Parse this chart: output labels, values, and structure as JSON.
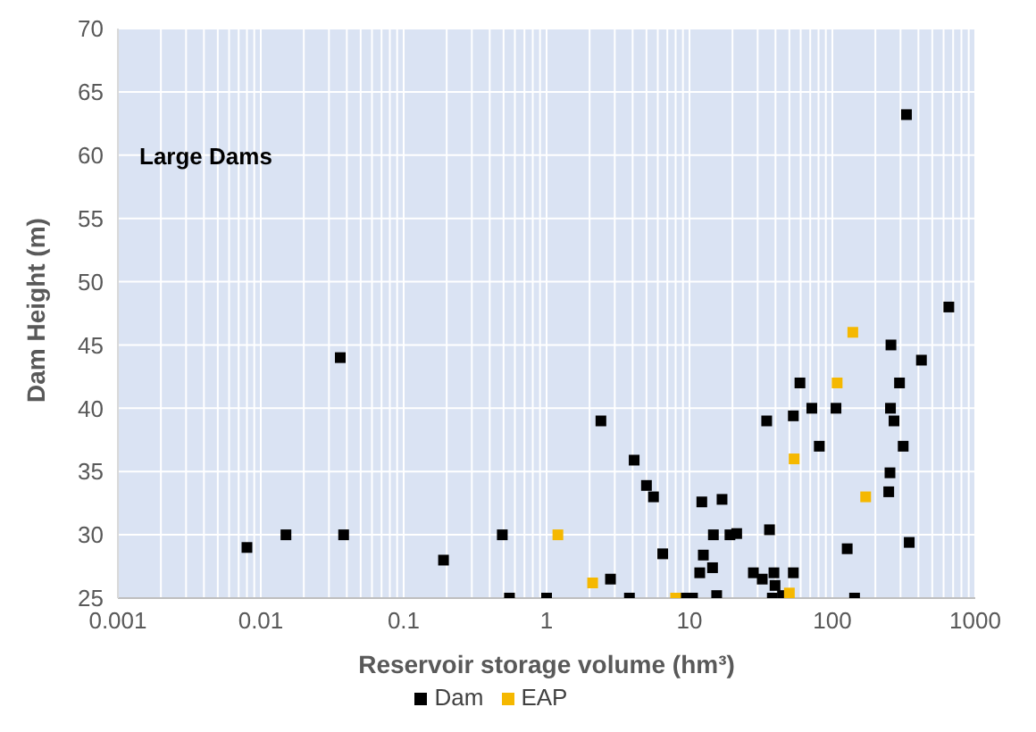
{
  "chart_data": {
    "type": "scatter",
    "xlabel": "Reservoir storage volume (hm³)",
    "ylabel": "Dam Height (m)",
    "annotations": [
      "Large Dams"
    ],
    "log": "x",
    "grid": true,
    "legend": "bottom",
    "marker": "square",
    "xlim": [
      0.001,
      1000
    ],
    "ylim": [
      25,
      70
    ],
    "xticks": [
      {
        "value": 0.001,
        "label": "0.001"
      },
      {
        "value": 0.002,
        "label": null
      },
      {
        "value": 0.003,
        "label": null
      },
      {
        "value": 0.004,
        "label": null
      },
      {
        "value": 0.005,
        "label": null
      },
      {
        "value": 0.006,
        "label": null
      },
      {
        "value": 0.007,
        "label": null
      },
      {
        "value": 0.008,
        "label": null
      },
      {
        "value": 0.009,
        "label": null
      },
      {
        "value": 0.01,
        "label": "0.01"
      },
      {
        "value": 0.02,
        "label": null
      },
      {
        "value": 0.03,
        "label": null
      },
      {
        "value": 0.04,
        "label": null
      },
      {
        "value": 0.05,
        "label": null
      },
      {
        "value": 0.06,
        "label": null
      },
      {
        "value": 0.07,
        "label": null
      },
      {
        "value": 0.08,
        "label": null
      },
      {
        "value": 0.09,
        "label": null
      },
      {
        "value": 0.1,
        "label": "0.1"
      },
      {
        "value": 0.2,
        "label": null
      },
      {
        "value": 0.3,
        "label": null
      },
      {
        "value": 0.4,
        "label": null
      },
      {
        "value": 0.5,
        "label": null
      },
      {
        "value": 0.6,
        "label": null
      },
      {
        "value": 0.7,
        "label": null
      },
      {
        "value": 0.8,
        "label": null
      },
      {
        "value": 0.9,
        "label": null
      },
      1,
      {
        "value": 2,
        "label": null
      },
      {
        "value": 3,
        "label": null
      },
      {
        "value": 4,
        "label": null
      },
      {
        "value": 5,
        "label": null
      },
      {
        "value": 6,
        "label": null
      },
      {
        "value": 7,
        "label": null
      },
      {
        "value": 8,
        "label": null
      },
      {
        "value": 9,
        "label": null
      },
      10,
      {
        "value": 20,
        "label": null
      },
      {
        "value": 30,
        "label": null
      },
      {
        "value": 40,
        "label": null
      },
      {
        "value": 50,
        "label": null
      },
      {
        "value": 60,
        "label": null
      },
      {
        "value": 70,
        "label": null
      },
      {
        "value": 80,
        "label": null
      },
      {
        "value": 90,
        "label": null
      },
      100,
      {
        "value": 200,
        "label": null
      },
      {
        "value": 300,
        "label": null
      },
      {
        "value": 400,
        "label": null
      },
      {
        "value": 500,
        "label": null
      },
      {
        "value": 600,
        "label": null
      },
      {
        "value": 700,
        "label": null
      },
      {
        "value": 800,
        "label": null
      },
      {
        "value": 900,
        "label": null
      },
      1000
    ],
    "yticks": [
      25,
      30,
      35,
      40,
      45,
      50,
      55,
      60,
      65,
      70
    ],
    "series": [
      {
        "name": "Dam",
        "color": "#000000",
        "x": [
          0.008,
          0.015,
          0.036,
          0.038,
          0.19,
          0.49,
          0.55,
          1.0,
          2.4,
          2.8,
          3.8,
          4.1,
          5.0,
          5.6,
          6.5,
          9.0,
          10.5,
          11.8,
          12.2,
          12.5,
          14.5,
          14.7,
          15.5,
          16.9,
          19.2,
          21.4,
          28,
          32.3,
          34.7,
          36.3,
          38,
          39,
          39.7,
          44.8,
          53.3,
          53.3,
          59.3,
          71.8,
          81,
          106,
          127,
          143,
          248,
          253,
          255,
          257,
          270,
          295,
          313,
          345,
          420,
          330,
          653
        ],
        "values": [
          29,
          30,
          44,
          30,
          28,
          30,
          25,
          25,
          39,
          26.5,
          25,
          35.9,
          33.9,
          33,
          28.5,
          25,
          25,
          27,
          32.6,
          28.4,
          27.4,
          30,
          25.2,
          32.8,
          30,
          30.1,
          27,
          26.5,
          39,
          30.4,
          25,
          27,
          26,
          25.2,
          39.4,
          27,
          42,
          40,
          37,
          40,
          28.9,
          25,
          33.4,
          34.9,
          40,
          45,
          39,
          42,
          37,
          29.4,
          43.8,
          63.2,
          48
        ]
      },
      {
        "name": "EAP",
        "color": "#f5b800",
        "x": [
          1.2,
          2.1,
          8.0,
          50,
          54,
          108,
          139,
          171
        ],
        "values": [
          30,
          26.2,
          25,
          25.4,
          36,
          42,
          46,
          33
        ]
      }
    ]
  }
}
